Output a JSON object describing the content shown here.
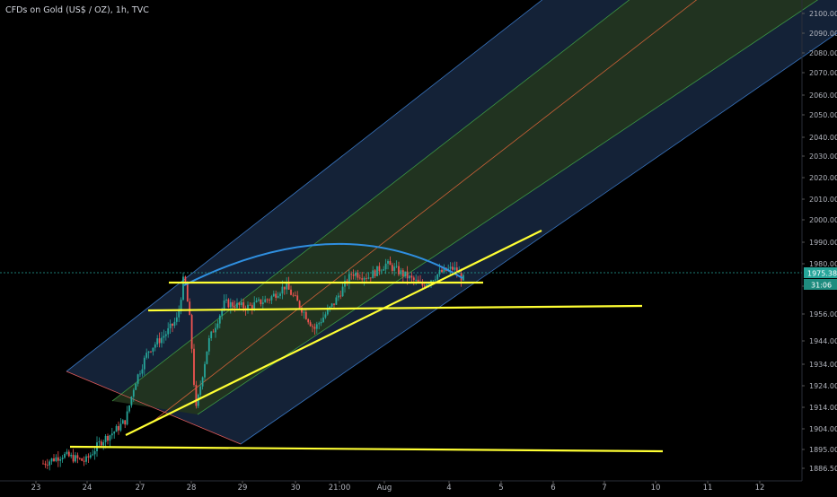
{
  "header": {
    "title": "CFDs on Gold (US$ / OZ), 1h, TVC"
  },
  "colors": {
    "background": "#000000",
    "candle_up": "#26a69a",
    "candle_down": "#ef5350",
    "trendline": "#ffff33",
    "arc": "#2f8fe0",
    "channel_outer": "#3d7ecf",
    "channel_inner": "#3fa046",
    "channel_median": "#e0663a",
    "price_tag": "#26a69a"
  },
  "price_tag": {
    "price": "1975.38",
    "countdown": "31:06"
  },
  "chart_data": {
    "type": "candlestick",
    "y_axis": {
      "ticks": [
        "2100.00",
        "2090.00",
        "2080.00",
        "2070.00",
        "2060.00",
        "2050.00",
        "2040.00",
        "2030.00",
        "2020.00",
        "2010.00",
        "2000.00",
        "1990.00",
        "1980.00",
        "1966.00",
        "1956.00",
        "1944.00",
        "1934.00",
        "1924.00",
        "1914.00",
        "1904.00",
        "1895.00",
        "1886.50"
      ]
    },
    "x_axis": {
      "ticks": [
        "23",
        "24",
        "27",
        "28",
        "29",
        "30",
        "21:00",
        "Aug",
        "4",
        "5",
        "6",
        "7",
        "10",
        "11",
        "12"
      ]
    },
    "ohlc_daily_approx": [
      {
        "day": "23",
        "open": 1888,
        "high": 1897,
        "low": 1886,
        "close": 1889
      },
      {
        "day": "24",
        "open": 1889,
        "high": 1904,
        "low": 1886,
        "close": 1902
      },
      {
        "day": "27",
        "open": 1902,
        "high": 1946,
        "low": 1900,
        "close": 1940
      },
      {
        "day": "28",
        "open": 1940,
        "high": 1982,
        "low": 1910,
        "close": 1955
      },
      {
        "day": "29",
        "open": 1955,
        "high": 1968,
        "low": 1944,
        "close": 1962
      },
      {
        "day": "30",
        "open": 1962,
        "high": 1974,
        "low": 1945,
        "close": 1960
      },
      {
        "day": "21:00",
        "open": 1960,
        "high": 1981,
        "low": 1955,
        "close": 1975
      },
      {
        "day": "Aug",
        "open": 1975,
        "high": 1984,
        "low": 1962,
        "close": 1971
      },
      {
        "day": "4",
        "open": 1971,
        "high": 1980,
        "low": 1966,
        "close": 1975.38
      }
    ],
    "drawings": [
      {
        "kind": "horizontal-line",
        "price": 1972
      },
      {
        "kind": "horizontal-line",
        "price": 1960
      },
      {
        "kind": "horizontal-line",
        "price": 1898
      },
      {
        "kind": "rising-trendline",
        "from_price": 1902,
        "to_price": 1995
      },
      {
        "kind": "arc",
        "peak_price": 1984
      },
      {
        "kind": "pitchfork-channel"
      }
    ]
  }
}
